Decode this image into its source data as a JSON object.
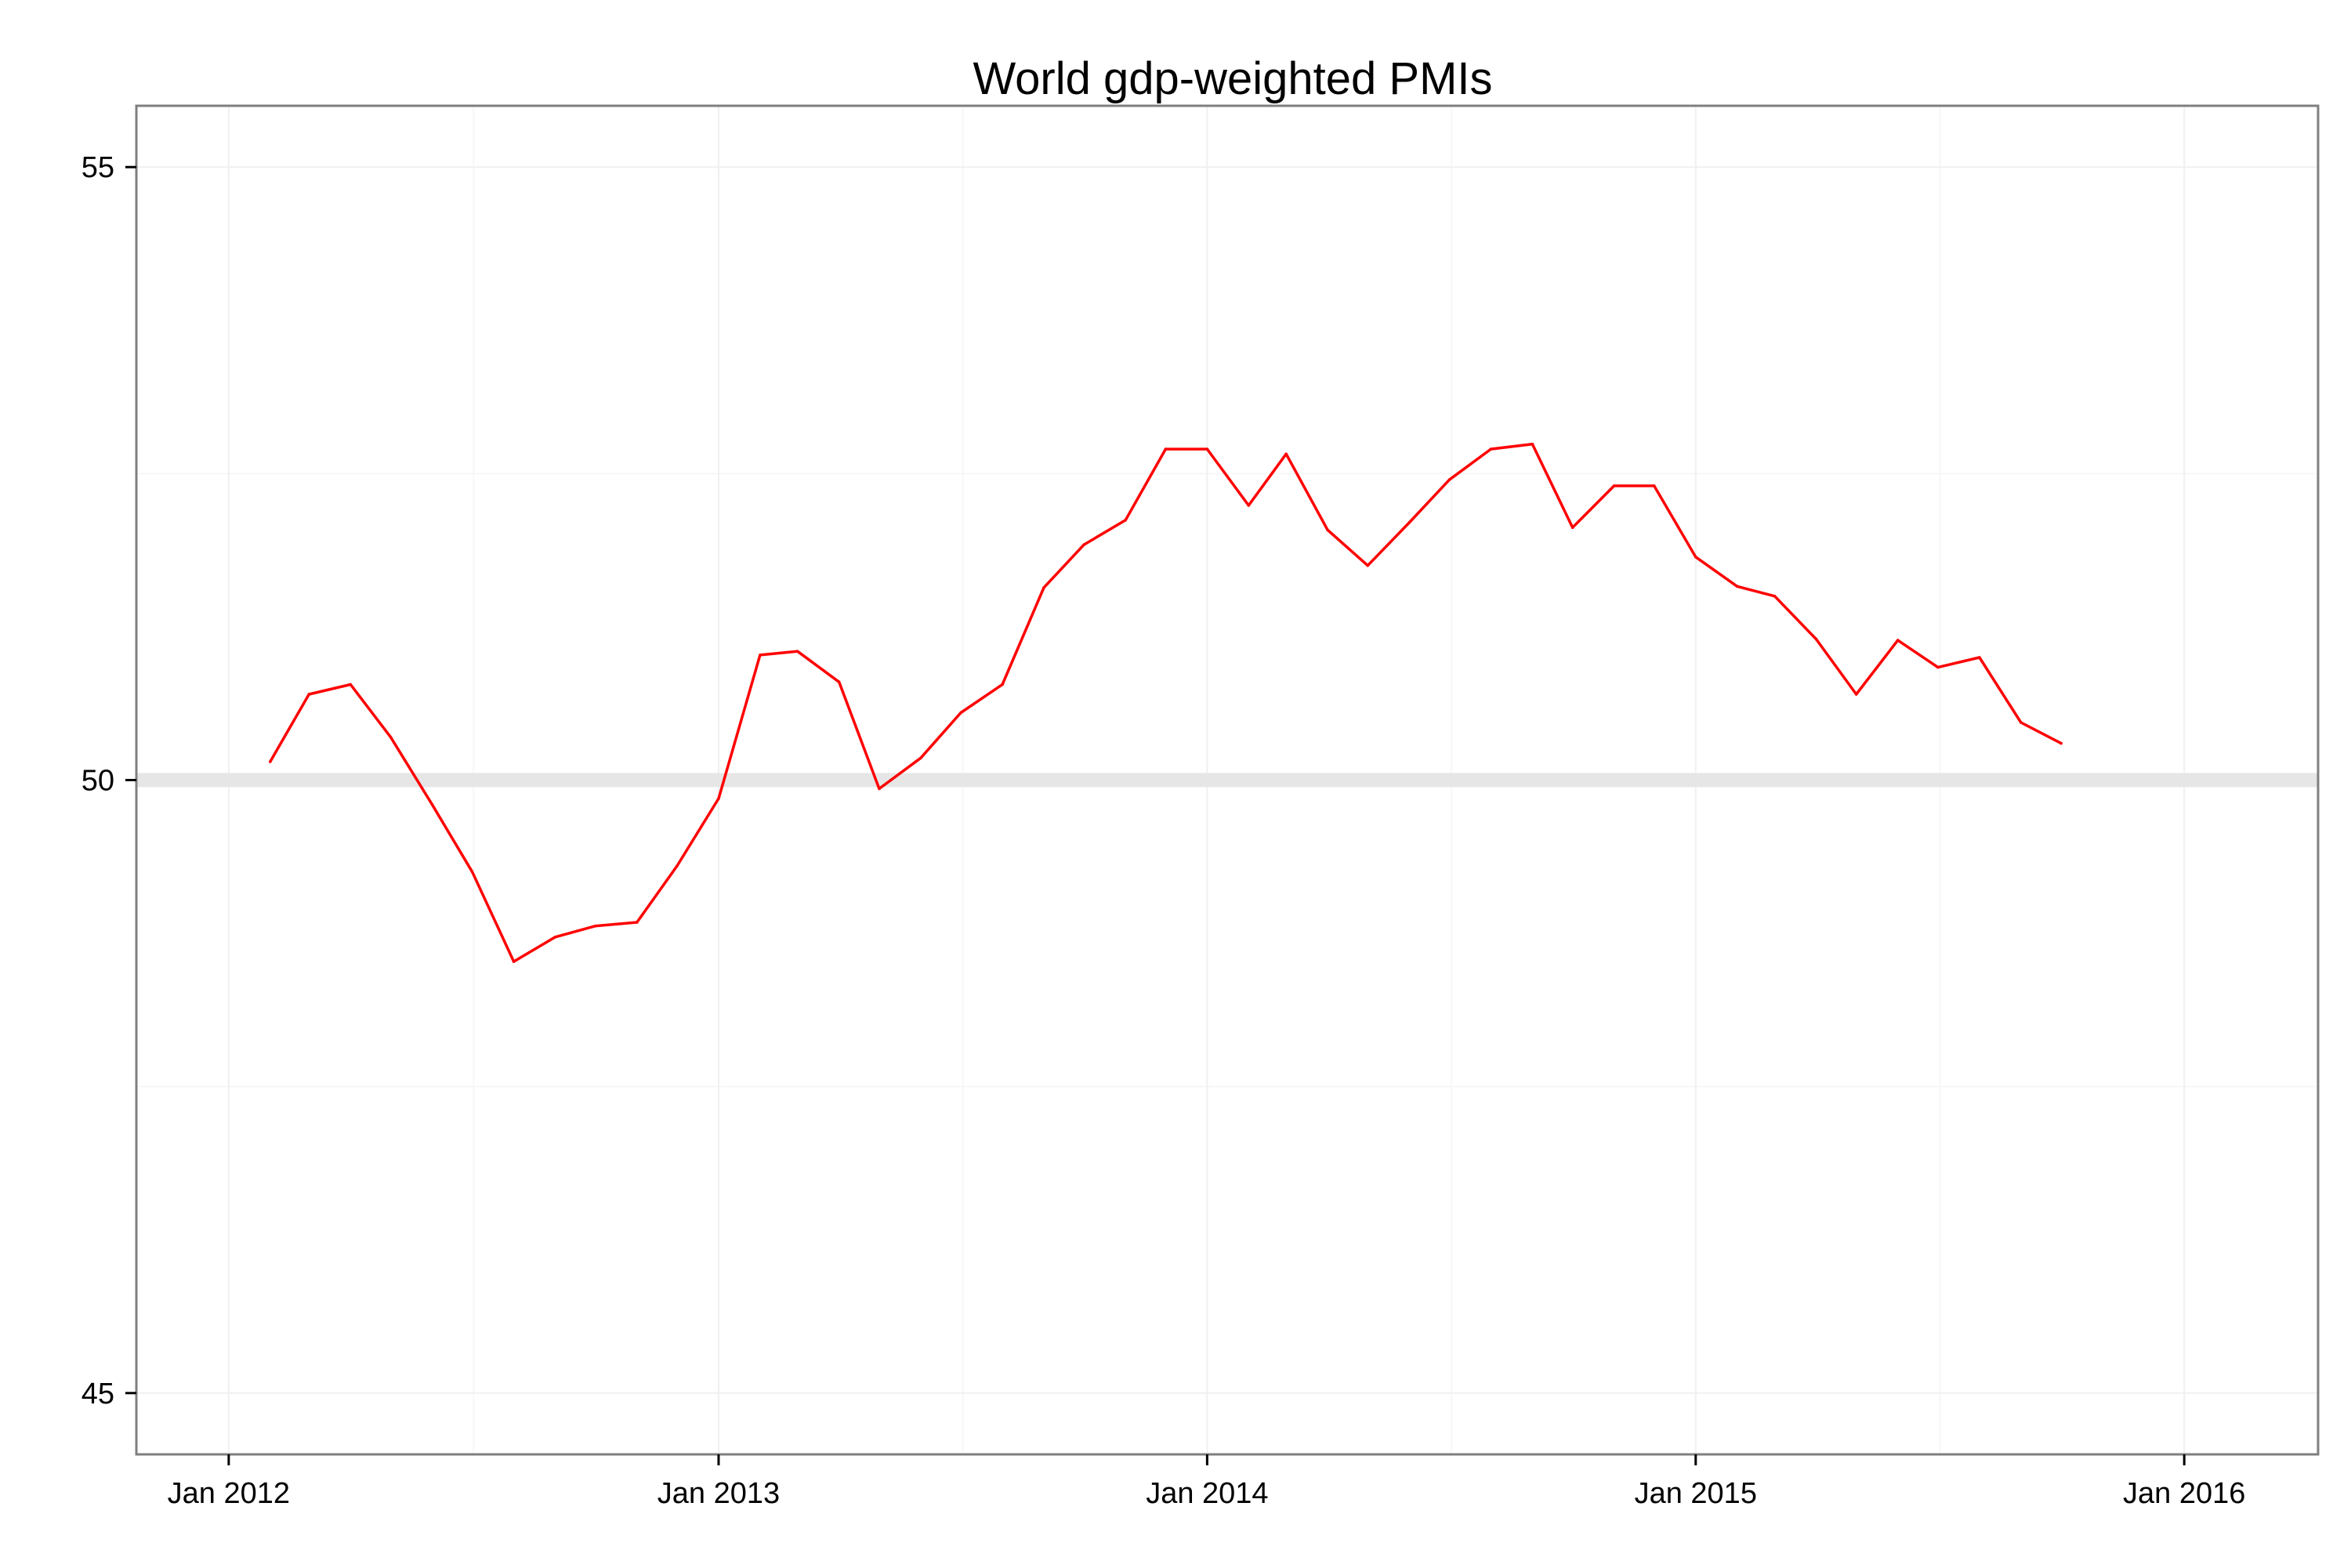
{
  "chart_data": {
    "type": "line",
    "title": "World gdp-weighted PMIs",
    "xlabel": "",
    "ylabel": "",
    "xlim": [
      "2011-10-24",
      "2016-04-10"
    ],
    "ylim": [
      44.5,
      55.5
    ],
    "x_ticks": [
      {
        "date": "2012-01-01",
        "label": "Jan 2012"
      },
      {
        "date": "2013-01-01",
        "label": "Jan 2013"
      },
      {
        "date": "2014-01-01",
        "label": "Jan 2014"
      },
      {
        "date": "2015-01-01",
        "label": "Jan 2015"
      },
      {
        "date": "2016-01-01",
        "label": "Jan 2016"
      }
    ],
    "y_ticks": [
      {
        "value": 45,
        "label": "45"
      },
      {
        "value": 50,
        "label": "50"
      },
      {
        "value": 55,
        "label": "55"
      }
    ],
    "reference_line": {
      "y": 50,
      "color": "#e6e6e6"
    },
    "grid": true,
    "series": [
      {
        "color": "#ff0000",
        "x": [
          "2012-02-01",
          "2012-03-01",
          "2012-04-01",
          "2012-05-01",
          "2012-06-01",
          "2012-07-01",
          "2012-08-01",
          "2012-09-01",
          "2012-10-01",
          "2012-11-01",
          "2012-12-01",
          "2013-01-01",
          "2013-02-01",
          "2013-03-01",
          "2013-04-01",
          "2013-05-01",
          "2013-06-01",
          "2013-07-01",
          "2013-08-01",
          "2013-09-01",
          "2013-10-01",
          "2013-11-01",
          "2013-12-01",
          "2014-01-01",
          "2014-02-01",
          "2014-03-01",
          "2014-04-01",
          "2014-05-01",
          "2014-06-01",
          "2014-07-01",
          "2014-08-01",
          "2014-09-01",
          "2014-10-01",
          "2014-11-01",
          "2014-12-01",
          "2015-01-01",
          "2015-02-01",
          "2015-03-01",
          "2015-04-01",
          "2015-05-01",
          "2015-06-01",
          "2015-07-01",
          "2015-08-01",
          "2015-09-01",
          "2015-10-01"
        ],
        "values": [
          50.15,
          50.7,
          50.78,
          50.35,
          49.8,
          49.25,
          48.52,
          48.72,
          48.81,
          48.84,
          49.3,
          49.85,
          51.02,
          51.05,
          50.8,
          49.93,
          50.18,
          50.55,
          50.78,
          51.57,
          51.92,
          52.12,
          52.7,
          52.7,
          52.24,
          52.66,
          52.04,
          51.75,
          52.1,
          52.45,
          52.7,
          52.74,
          52.06,
          52.4,
          52.4,
          51.82,
          51.58,
          51.5,
          51.15,
          50.7,
          51.14,
          50.92,
          51.0,
          50.47,
          50.3
        ]
      }
    ]
  }
}
